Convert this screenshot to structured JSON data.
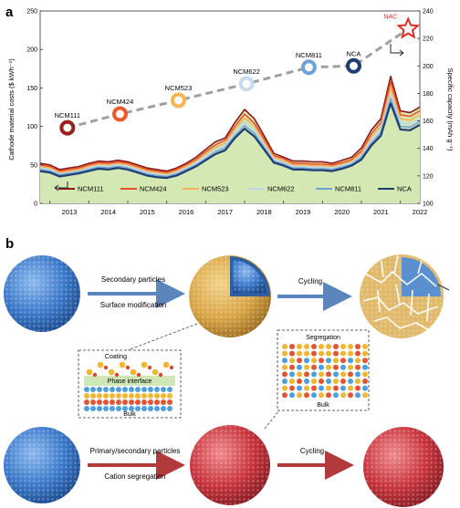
{
  "panel_a_label": "a",
  "panel_b_label": "b",
  "chart_data": {
    "type": "area",
    "ylabel_left": "Cathode material costs ($ kWh⁻¹)",
    "ylabel_right": "Specific capacity (mAh g⁻¹)",
    "xlabel": "",
    "ylim_left": [
      0,
      250
    ],
    "ylim_right": [
      100,
      240
    ],
    "x_ticks": [
      "2013",
      "2014",
      "2015",
      "2016",
      "2017",
      "2018",
      "2019",
      "2020",
      "2021",
      "2022"
    ],
    "y_ticks_left": [
      "0",
      "50",
      "100",
      "150",
      "200",
      "250"
    ],
    "y_ticks_right": [
      "100",
      "120",
      "140",
      "160",
      "180",
      "200",
      "220",
      "240"
    ],
    "x_years": [
      2012.75,
      2013.0,
      2013.25,
      2013.5,
      2013.75,
      2014.0,
      2014.25,
      2014.5,
      2014.75,
      2015.0,
      2015.25,
      2015.5,
      2015.75,
      2016.0,
      2016.25,
      2016.5,
      2016.75,
      2017.0,
      2017.25,
      2017.5,
      2017.75,
      2018.0,
      2018.25,
      2018.5,
      2018.75,
      2019.0,
      2019.25,
      2019.5,
      2019.75,
      2020.0,
      2020.25,
      2020.5,
      2020.75,
      2021.0,
      2021.25,
      2021.5,
      2021.75,
      2022.0,
      2022.25,
      2022.5
    ],
    "series": [
      {
        "name": "NCM111",
        "color": "#8b1a1a",
        "values": [
          52,
          50,
          44,
          46,
          48,
          52,
          55,
          54,
          56,
          54,
          50,
          46,
          44,
          42,
          46,
          52,
          60,
          70,
          80,
          85,
          105,
          122,
          110,
          88,
          65,
          60,
          55,
          55,
          54,
          54,
          52,
          56,
          60,
          72,
          95,
          110,
          165,
          120,
          118,
          125
        ]
      },
      {
        "name": "NCM424",
        "color": "#e8502a",
        "values": [
          50,
          48,
          42,
          44,
          46,
          50,
          53,
          52,
          54,
          52,
          48,
          44,
          42,
          40,
          44,
          50,
          57,
          67,
          76,
          82,
          100,
          116,
          104,
          84,
          62,
          58,
          52,
          52,
          51,
          51,
          50,
          53,
          57,
          68,
          90,
          105,
          158,
          115,
          113,
          120
        ]
      },
      {
        "name": "NCM523",
        "color": "#f5b25a",
        "values": [
          48,
          46,
          40,
          42,
          44,
          48,
          51,
          50,
          52,
          50,
          46,
          42,
          40,
          38,
          42,
          48,
          55,
          64,
          73,
          78,
          96,
          111,
          100,
          80,
          60,
          55,
          50,
          50,
          49,
          49,
          48,
          51,
          55,
          65,
          86,
          100,
          150,
          110,
          108,
          115
        ]
      },
      {
        "name": "NCM622",
        "color": "#bcd7ea",
        "values": [
          46,
          44,
          38,
          40,
          42,
          46,
          49,
          48,
          50,
          48,
          44,
          40,
          38,
          36,
          40,
          46,
          52,
          61,
          70,
          75,
          92,
          106,
          95,
          76,
          57,
          53,
          48,
          48,
          47,
          47,
          46,
          49,
          53,
          62,
          82,
          96,
          142,
          105,
          103,
          110
        ]
      },
      {
        "name": "NCM811",
        "color": "#6fa3d6",
        "values": [
          44,
          42,
          37,
          39,
          41,
          44,
          47,
          46,
          48,
          46,
          42,
          38,
          36,
          35,
          38,
          44,
          50,
          58,
          67,
          72,
          88,
          101,
          91,
          73,
          55,
          51,
          46,
          46,
          45,
          45,
          44,
          47,
          51,
          60,
          78,
          92,
          136,
          100,
          99,
          106
        ]
      },
      {
        "name": "NCA",
        "color": "#1f3f73",
        "values": [
          42,
          40,
          35,
          37,
          39,
          42,
          45,
          44,
          46,
          44,
          40,
          36,
          34,
          33,
          36,
          42,
          48,
          56,
          64,
          69,
          85,
          97,
          87,
          70,
          53,
          49,
          44,
          44,
          43,
          43,
          42,
          45,
          49,
          57,
          75,
          88,
          130,
          96,
          95,
          102
        ]
      }
    ],
    "capacity_points": [
      {
        "name": "NCM111",
        "year": 2013.45,
        "capacity": 155,
        "ring_color": "#9b1f1f"
      },
      {
        "name": "NCM424",
        "year": 2014.8,
        "capacity": 165,
        "ring_color": "#ea5b2c"
      },
      {
        "name": "NCM523",
        "year": 2016.3,
        "capacity": 175,
        "ring_color": "#f7b654"
      },
      {
        "name": "NCM622",
        "year": 2018.05,
        "capacity": 187,
        "ring_color": "#c7dced"
      },
      {
        "name": "NCM811",
        "year": 2019.65,
        "capacity": 199,
        "ring_color": "#6fa3d6"
      },
      {
        "name": "NCA",
        "year": 2020.8,
        "capacity": 200,
        "ring_color": "#1f3f73"
      },
      {
        "name": "NAC",
        "year": 2022.2,
        "capacity": 227,
        "ring_color": "#d9302a"
      }
    ],
    "legend_position": "bottom"
  },
  "panel_b": {
    "row1": {
      "arrow1_top": "Secondary particles",
      "arrow1_bottom": "Surface modification",
      "arrow2_top": "Cycling"
    },
    "row2": {
      "arrow1_top": "Primary/secondary particles",
      "arrow1_bottom": "Cation segregation",
      "arrow2_top": "Cycling"
    },
    "inset_coating": {
      "title": "Coating",
      "interface": "Phase interface",
      "bulk": "Bulk"
    },
    "inset_segregation": {
      "title": "Segregation",
      "bulk": "Bulk"
    },
    "colors": {
      "blue": "#3a78c9",
      "gold": "#d8a445",
      "red": "#c8333c",
      "arrow_blue": "#5b86bd",
      "arrow_red": "#b23a3a"
    }
  }
}
